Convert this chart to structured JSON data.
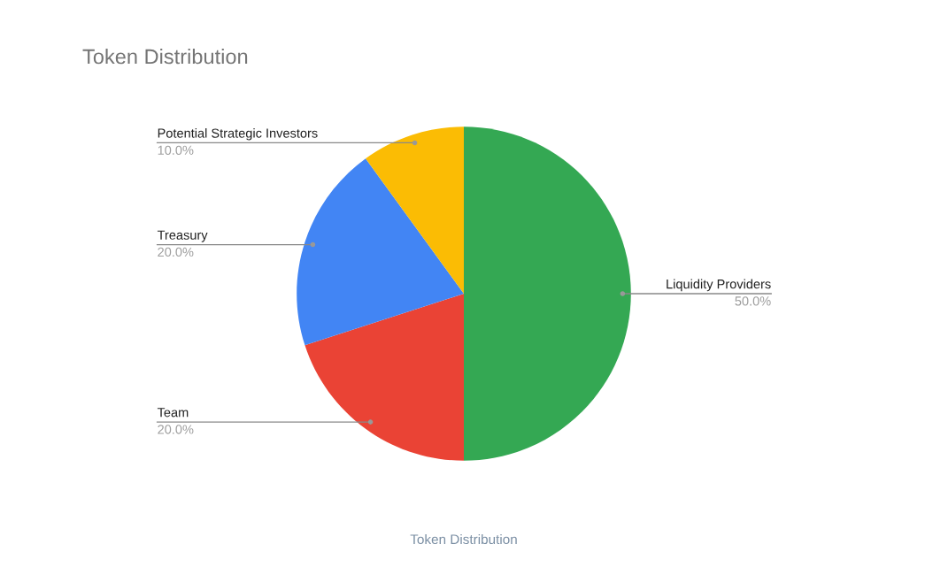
{
  "chart_data": {
    "type": "pie",
    "title": "Token Distribution",
    "xlabel": "Token Distribution",
    "categories": [
      "Liquidity Providers",
      "Team",
      "Treasury",
      "Potential Strategic Investors"
    ],
    "values": [
      50,
      20,
      20,
      10
    ],
    "colors": [
      "#34a853",
      "#ea4335",
      "#4285f4",
      "#fbbc04"
    ],
    "value_labels": [
      "50.0%",
      "20.0%",
      "20.0%",
      "10.0%"
    ],
    "legend": false
  }
}
